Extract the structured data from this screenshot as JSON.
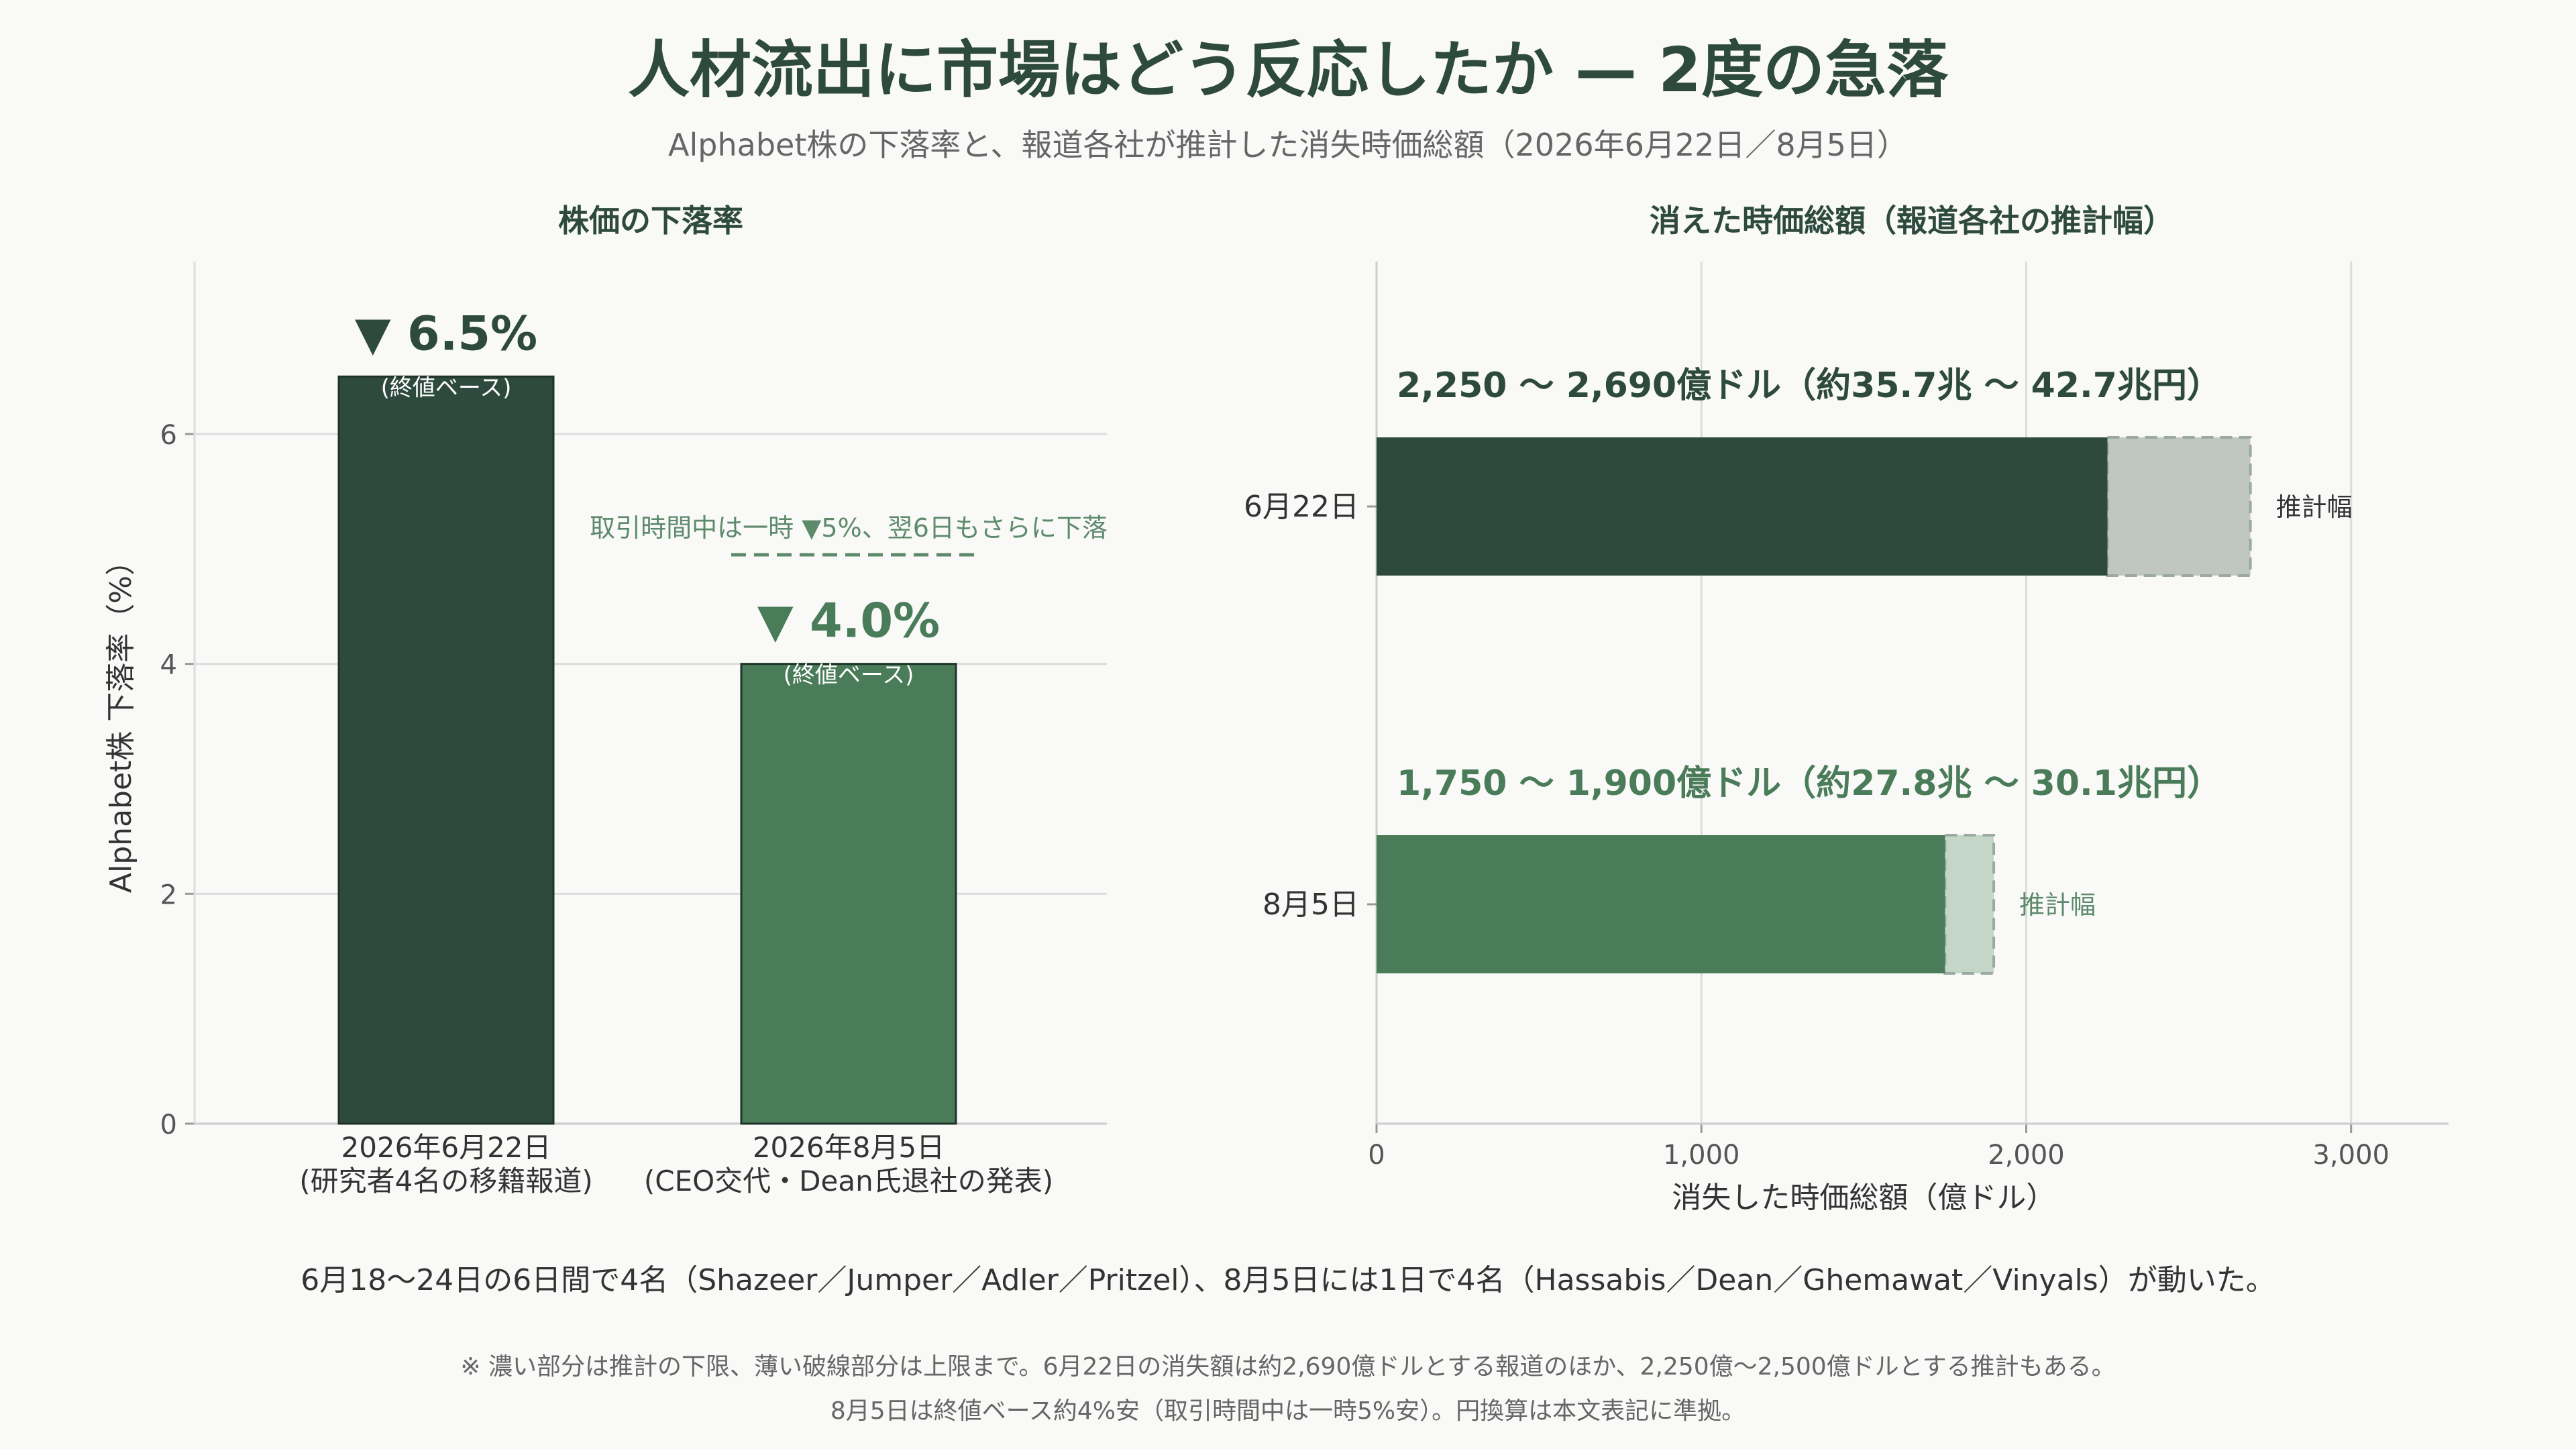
{
  "title": "人材流出に市場はどう反応したか — 2度の急落",
  "subtitle": "Alphabet株の下落率と、報道各社が推計した消失時価総額（2026年6月22日／8月5日）",
  "colors": {
    "dark_green": "#2e4a3e",
    "mid_green": "#4a7c59",
    "grey_range": "#c0c7c2",
    "light_green_range": "#c4d6c8",
    "annotation_green": "#5e8a6c",
    "grid": "#dcdcdc",
    "axis_text": "#555555"
  },
  "chart_data": [
    {
      "type": "bar",
      "title": "株価の下落率",
      "ylabel": "Alphabet株 下落率（%）",
      "xlabel": "",
      "ylim": [
        0,
        7.5
      ],
      "yticks": [
        0,
        2,
        4,
        6
      ],
      "grid": true,
      "categories": [
        "2026年6月22日\n(研究者4名の移籍報道)",
        "2026年8月5日\n(CEO交代・Dean氏退社の発表)"
      ],
      "values": [
        6.5,
        4.0
      ],
      "bar_colors": [
        "#2e4a3e",
        "#4a7c59"
      ],
      "value_labels": [
        "▼ 6.5%",
        "▼ 4.0%"
      ],
      "value_sublabels": [
        "(終値ベース)",
        "(終値ベース)"
      ],
      "annotation": "取引時間中は一時 ▼5%、翌6日もさらに下落"
    },
    {
      "type": "bar",
      "orientation": "horizontal",
      "title": "消えた時価総額（報道各社の推計幅）",
      "xlabel": "消失した時価総額（億ドル）",
      "ylabel": "",
      "xlim": [
        0,
        3300
      ],
      "xticks": [
        0,
        1000,
        2000,
        3000
      ],
      "xtick_labels": [
        "0",
        "1,000",
        "2,000",
        "3,000"
      ],
      "grid": true,
      "categories": [
        "6月22日",
        "8月5日"
      ],
      "low": [
        2250,
        1750
      ],
      "high": [
        2690,
        1900
      ],
      "range_labels": [
        "2,250 〜 2,690億ドル（約35.7兆 〜 42.7兆円）",
        "1,750 〜 1,900億ドル（約27.8兆 〜 30.1兆円）"
      ],
      "range_tag": "推計幅",
      "bar_colors": [
        "#2e4a3e",
        "#4a7c59"
      ],
      "range_colors": [
        "#c0c7c2",
        "#c4d6c8"
      ]
    }
  ],
  "summary": "6月18〜24日の6日間で4名（Shazeer／Jumper／Adler／Pritzel）、8月5日には1日で4名（Hassabis／Dean／Ghemawat／Vinyals）が動いた。",
  "notes": [
    "※ 濃い部分は推計の下限、薄い破線部分は上限まで。6月22日の消失額は約2,690億ドルとする報道のほか、2,250億〜2,500億ドルとする推計もある。",
    "8月5日は終値ベース約4%安（取引時間中は一時5%安）。円換算は本文表記に準拠。"
  ]
}
